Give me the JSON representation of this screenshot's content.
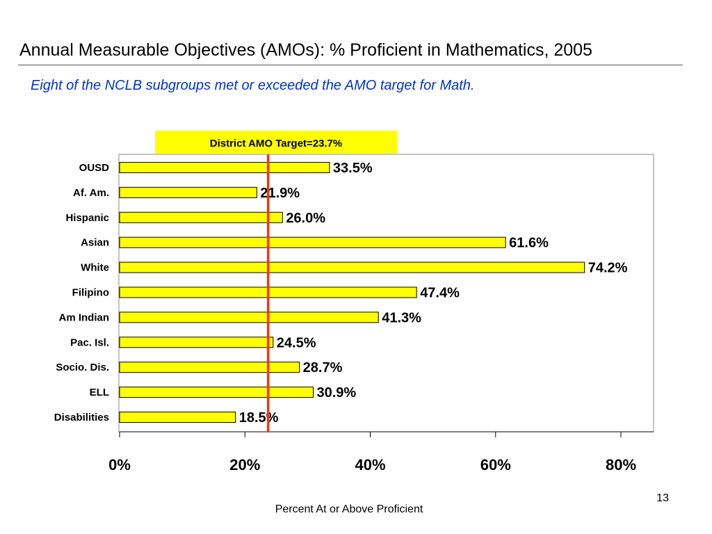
{
  "slide": {
    "title": "Annual Measurable Objectives (AMOs):  % Proficient in Mathematics, 2005",
    "subtitle": "Eight of the NCLB subgroups met or exceeded the AMO target for Math.",
    "page_number": "13"
  },
  "chart_data": {
    "type": "bar",
    "orientation": "horizontal",
    "categories": [
      "OUSD",
      "Af. Am.",
      "Hispanic",
      "Asian",
      "White",
      "Filipino",
      "Am Indian",
      "Pac. Isl.",
      "Socio. Dis.",
      "ELL",
      "Disabilities"
    ],
    "values": [
      33.5,
      21.9,
      26.0,
      61.6,
      74.2,
      47.4,
      41.3,
      24.5,
      28.7,
      30.9,
      18.5
    ],
    "value_labels": [
      "33.5%",
      "21.9%",
      "26.0%",
      "61.6%",
      "74.2%",
      "47.4%",
      "41.3%",
      "24.5%",
      "28.7%",
      "30.9%",
      "18.5%"
    ],
    "xlabel": "Percent At or Above Proficient",
    "ylabel": "",
    "xlim": [
      0,
      85
    ],
    "xticks": [
      0,
      20,
      40,
      60,
      80
    ],
    "xtick_labels": [
      "0%",
      "20%",
      "40%",
      "60%",
      "80%"
    ],
    "bar_color": "#ffff00",
    "bar_edge_color": "#000000",
    "target": {
      "value": 23.7,
      "label": "District AMO Target=23.7%",
      "line_color": "#ff3300",
      "label_background": "#ffff00"
    },
    "grid": false,
    "legend": "none"
  }
}
